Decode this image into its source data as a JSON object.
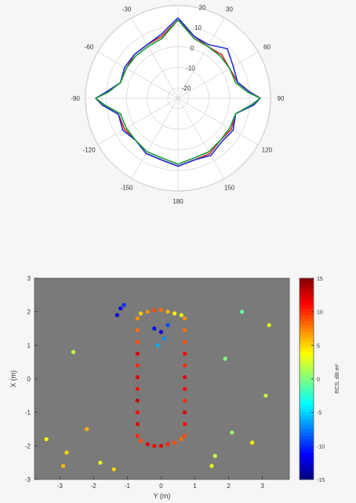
{
  "chart_data": [
    {
      "type": "polar-line",
      "title": "",
      "theta_labels": [
        "0",
        "30",
        "60",
        "90",
        "120",
        "150",
        "180",
        "-150",
        "-120",
        "-90",
        "-60",
        "-30"
      ],
      "radial_ticks": [
        -20,
        -10,
        0,
        10,
        20
      ],
      "radial_tick_labels": [
        "-20",
        "-10",
        "0",
        "10",
        "20"
      ],
      "rlim": [
        -25,
        20
      ],
      "series": [
        {
          "color": "#d62020",
          "theta_deg": [
            0,
            15,
            30,
            45,
            60,
            75,
            85,
            90,
            95,
            105,
            120,
            135,
            150,
            165,
            180,
            -165,
            -150,
            -135,
            -120,
            -105,
            -95,
            -90,
            -85,
            -75,
            -60,
            -45,
            -30,
            -15,
            0
          ],
          "values": [
            13,
            6,
            4,
            5,
            4,
            5,
            10,
            15,
            12,
            4,
            5,
            4,
            6,
            6,
            8,
            6,
            6,
            4,
            5,
            5,
            12,
            15,
            10,
            4,
            4,
            5,
            5,
            6,
            13
          ]
        },
        {
          "color": "#2030d0",
          "theta_deg": [
            0,
            15,
            30,
            45,
            60,
            75,
            85,
            90,
            95,
            105,
            120,
            135,
            150,
            165,
            180,
            -165,
            -150,
            -135,
            -120,
            -105,
            -95,
            -90,
            -85,
            -75,
            -60,
            -45,
            -30,
            -15,
            0
          ],
          "values": [
            14,
            6,
            5,
            9,
            6,
            5,
            10,
            15,
            12,
            4,
            6,
            5,
            7,
            6,
            8,
            6,
            6,
            4,
            6,
            5,
            12,
            15,
            10,
            4,
            5,
            5,
            5,
            7,
            14
          ]
        },
        {
          "color": "#1a9a3a",
          "theta_deg": [
            0,
            15,
            30,
            45,
            60,
            75,
            85,
            90,
            95,
            105,
            120,
            135,
            150,
            165,
            180,
            -165,
            -150,
            -135,
            -120,
            -105,
            -95,
            -90,
            -85,
            -75,
            -60,
            -45,
            -30,
            -15,
            0
          ],
          "values": [
            13,
            5,
            4,
            4,
            4,
            4,
            9,
            15,
            11,
            4,
            4,
            4,
            5,
            5,
            7,
            5,
            5,
            4,
            4,
            4,
            11,
            15,
            9,
            4,
            4,
            4,
            4,
            5,
            13
          ]
        }
      ]
    },
    {
      "type": "scatter",
      "title": "",
      "xlabel": "Y (m)",
      "ylabel": "X (m)",
      "xlim": [
        -3.75,
        3.8
      ],
      "ylim": [
        -3,
        3
      ],
      "x_ticks": [
        -3,
        -2,
        -1,
        0,
        1,
        2,
        3
      ],
      "x_tick_labels": [
        "-3",
        "-2",
        "-1",
        "0",
        "1",
        "2",
        "3"
      ],
      "y_ticks": [
        -3,
        -2,
        -1,
        0,
        1,
        2,
        3
      ],
      "y_tick_labels": [
        "-3",
        "-2",
        "-1",
        "0",
        "1",
        "2",
        "3"
      ],
      "background": "#7a7a7a",
      "colorbar": {
        "label": "RCS, dB·m²",
        "min": -15,
        "max": 15,
        "ticks": [
          -15,
          -10,
          -5,
          0,
          5,
          10,
          15
        ],
        "tick_labels": [
          "-15",
          "-10",
          "-5",
          "0",
          "5",
          "10",
          "15"
        ]
      },
      "series": [
        {
          "x": [
            -0.7,
            -0.7,
            -0.7,
            -0.7,
            -0.7,
            -0.7,
            -0.7,
            -0.7,
            -0.7,
            -0.7,
            -0.7,
            0.7,
            0.7,
            0.7,
            0.7,
            0.7,
            0.7,
            0.7,
            0.7,
            0.7,
            0.7,
            0.7,
            -0.6,
            -0.4,
            -0.2,
            0.0,
            0.2,
            0.4,
            0.6,
            -0.6,
            -0.4,
            -0.2,
            0.0,
            0.2,
            0.4,
            0.6
          ],
          "y": [
            -1.7,
            -1.35,
            -1.0,
            -0.65,
            -0.3,
            0.05,
            0.4,
            0.75,
            1.1,
            1.45,
            1.8,
            -1.7,
            -1.35,
            -1.0,
            -0.65,
            -0.3,
            0.05,
            0.4,
            0.75,
            1.1,
            1.45,
            1.8,
            1.95,
            2.0,
            2.05,
            2.05,
            2.0,
            1.95,
            1.9,
            -1.85,
            -1.95,
            -2.0,
            -2.0,
            -1.95,
            -1.9,
            -1.8
          ],
          "rcs": [
            10,
            12,
            11,
            13,
            11,
            12,
            10,
            12,
            9,
            8,
            7,
            9,
            11,
            12,
            10,
            11,
            12,
            10,
            11,
            9,
            8,
            7,
            5,
            7,
            9,
            8,
            6,
            4,
            3,
            9,
            12,
            11,
            12,
            10,
            9,
            8
          ]
        },
        {
          "x": [
            -1.2,
            -1.3,
            -1.1,
            -0.2,
            0.0,
            0.2,
            0.1,
            -0.1,
            -3.4,
            -2.8,
            -2.2,
            -1.8,
            -2.6,
            1.6,
            2.1,
            2.7,
            3.2,
            2.4,
            1.9,
            -2.9,
            -1.4,
            1.5,
            3.1
          ],
          "y": [
            2.1,
            1.9,
            2.2,
            1.5,
            1.4,
            1.6,
            1.2,
            1.0,
            -1.8,
            -2.2,
            -1.5,
            -2.5,
            0.8,
            -2.3,
            -1.6,
            -1.9,
            1.6,
            2.0,
            0.6,
            -2.6,
            -2.7,
            -2.6,
            -0.5
          ],
          "rcs": [
            -12,
            -13,
            -10,
            -11,
            -12,
            -9,
            -7,
            -6,
            4,
            5,
            6,
            3,
            2,
            2,
            1,
            4,
            3,
            -1,
            0,
            6,
            5,
            3,
            2
          ]
        }
      ]
    }
  ]
}
